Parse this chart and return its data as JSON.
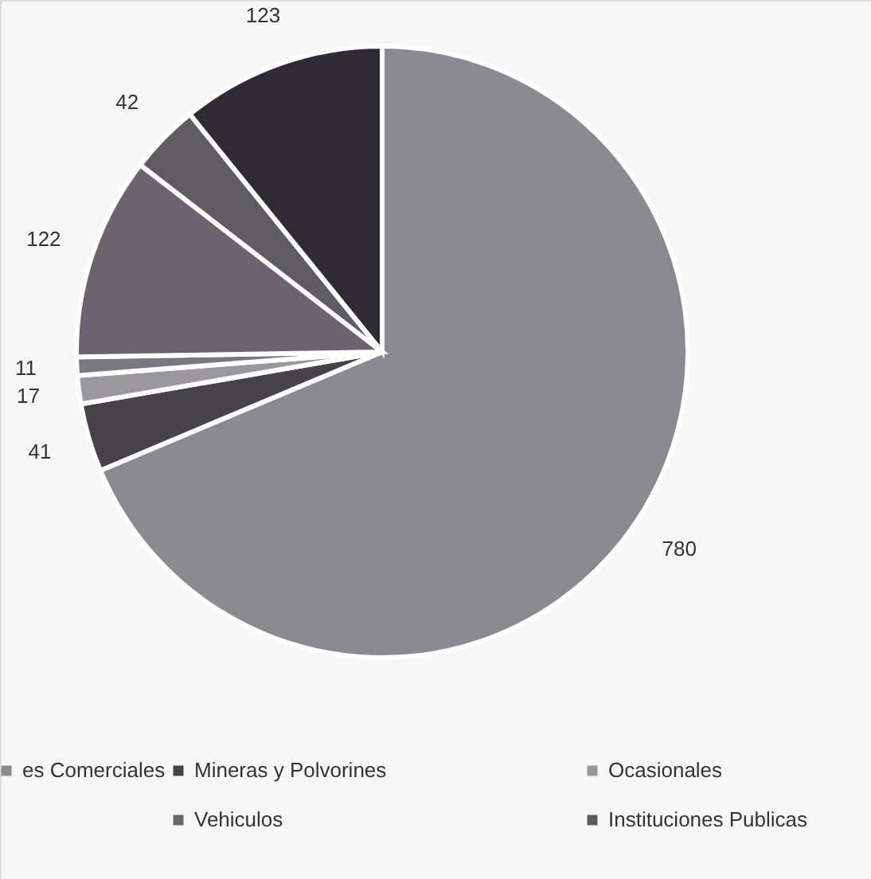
{
  "chart_data": {
    "type": "pie",
    "categories": [
      "es Comerciales",
      "Mineras y Polvorines",
      "Ocasionales",
      null,
      "Vehiculos",
      "Instituciones Publicas",
      null
    ],
    "values": [
      780,
      41,
      17,
      11,
      122,
      42,
      123
    ],
    "colors": [
      "#8b8a90",
      "#46414a",
      "#9a979d",
      "#7b7780",
      "#6b6370",
      "#5f5b63",
      "#2f2b36"
    ],
    "data_labels": true,
    "legend": "bottom"
  }
}
